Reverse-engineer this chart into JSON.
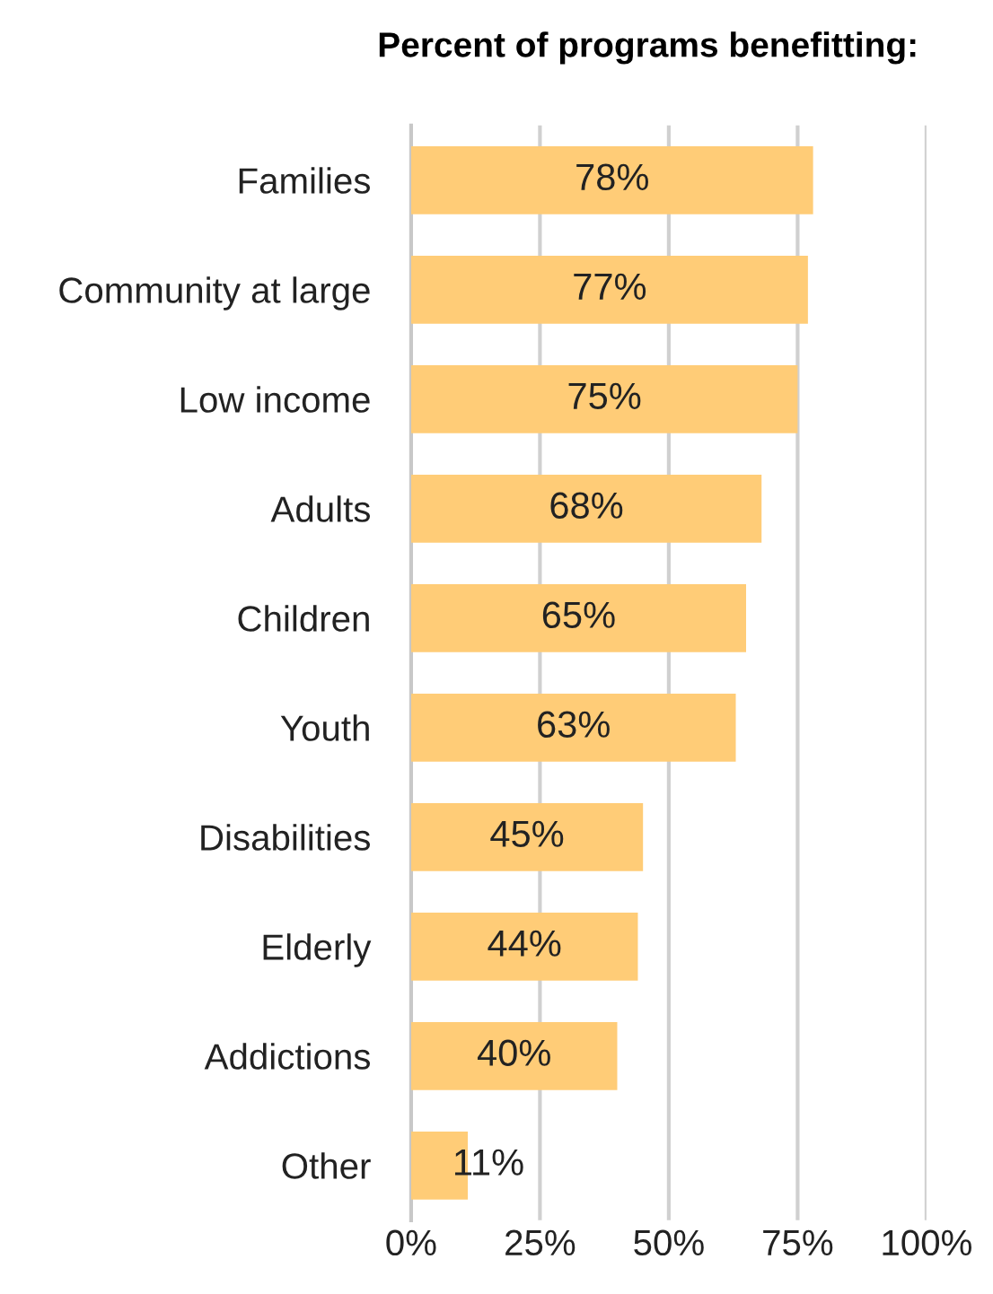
{
  "chart_data": {
    "type": "bar",
    "orientation": "horizontal",
    "title": "Percent of programs benefitting:",
    "categories": [
      "Families",
      "Community at large",
      "Low income",
      "Adults",
      "Children",
      "Youth",
      "Disabilities",
      "Elderly",
      "Addictions",
      "Other"
    ],
    "values": [
      78,
      77,
      75,
      68,
      65,
      63,
      45,
      44,
      40,
      11
    ],
    "value_labels": [
      "78%",
      "77%",
      "75%",
      "68%",
      "65%",
      "63%",
      "45%",
      "44%",
      "40%",
      "11%"
    ],
    "color": "#ffcc77",
    "xlim": [
      0,
      100
    ],
    "xticks": [
      {
        "value": 0,
        "label": "0%"
      },
      {
        "value": 25,
        "label": "25%"
      },
      {
        "value": 50,
        "label": "50%"
      },
      {
        "value": 75,
        "label": "75%"
      },
      {
        "value": 100,
        "label": "100%"
      }
    ],
    "grid": "x"
  }
}
